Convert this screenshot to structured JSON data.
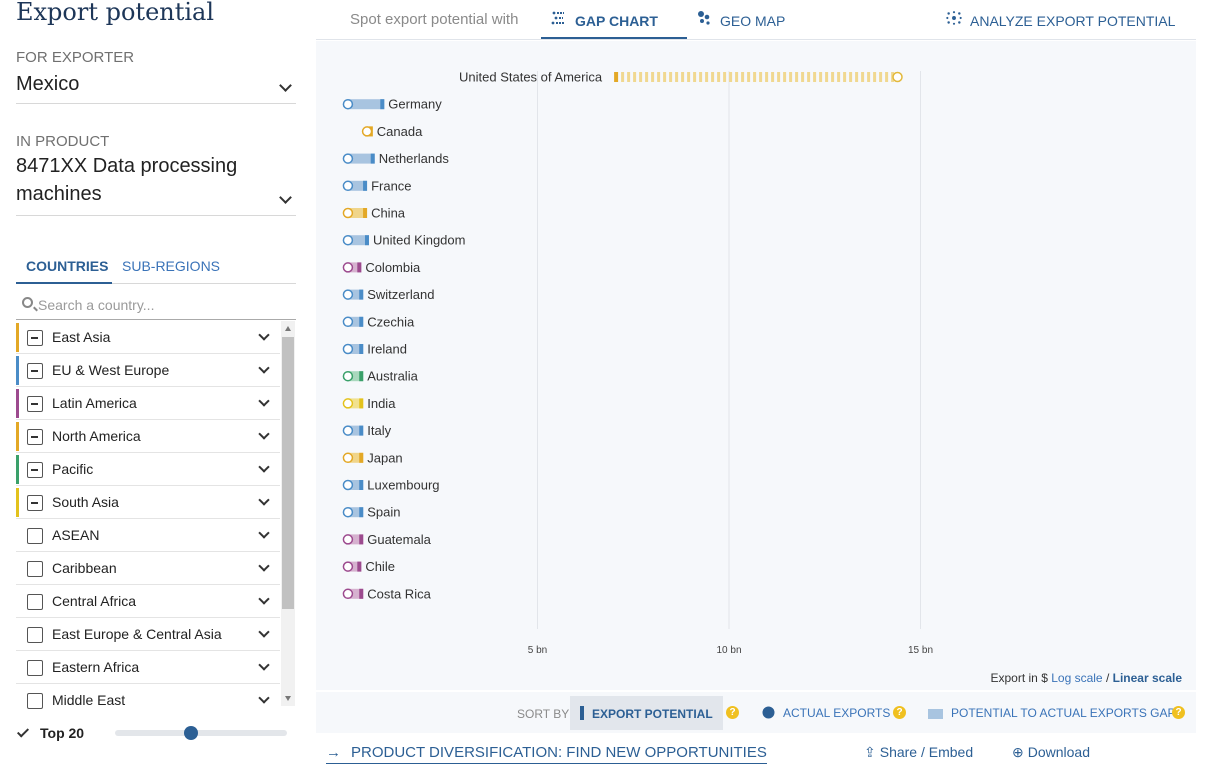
{
  "page_title": "Export potential",
  "exporter": {
    "label": "FOR EXPORTER",
    "value": "Mexico"
  },
  "product": {
    "label": "IN PRODUCT",
    "value_line1": "8471XX Data processing",
    "value_line2": "machines"
  },
  "tabs": {
    "countries": "COUNTRIES",
    "subregions": "SUB-REGIONS"
  },
  "search": {
    "placeholder": "Search a country..."
  },
  "regions": [
    {
      "name": "East Asia",
      "color": "#e3a826",
      "state": "partial"
    },
    {
      "name": "EU & West Europe",
      "color": "#4a8cc7",
      "state": "partial"
    },
    {
      "name": "Latin America",
      "color": "#9c4a8e",
      "state": "partial"
    },
    {
      "name": "North America",
      "color": "#e3a826",
      "state": "partial"
    },
    {
      "name": "Pacific",
      "color": "#3aa06a",
      "state": "partial"
    },
    {
      "name": "South Asia",
      "color": "#e3c21c",
      "state": "partial"
    },
    {
      "name": "ASEAN",
      "color": "",
      "state": "none"
    },
    {
      "name": "Caribbean",
      "color": "",
      "state": "none"
    },
    {
      "name": "Central Africa",
      "color": "",
      "state": "none"
    },
    {
      "name": "East Europe & Central Asia",
      "color": "",
      "state": "none"
    },
    {
      "name": "Eastern Africa",
      "color": "",
      "state": "none"
    },
    {
      "name": "Middle East",
      "color": "",
      "state": "none"
    }
  ],
  "top_n": {
    "label": "Top 20",
    "slider_fraction": 0.44
  },
  "topbar": {
    "spot_label": "Spot export potential with",
    "gap_chart": "GAP CHART",
    "geo_map": "GEO MAP",
    "analyze": "ANALYZE EXPORT POTENTIAL"
  },
  "chart_data": {
    "type": "gap-chart",
    "x_ticks": [
      "5 bn",
      "10 bn",
      "15 bn"
    ],
    "x_tick_values": [
      5,
      10,
      15
    ],
    "x_unit": "bn $",
    "rows": [
      {
        "country": "United States of America",
        "actual": 7.0,
        "potential": 14.4,
        "color": "#e3b93c"
      },
      {
        "country": "Germany",
        "actual": 0.05,
        "potential": 1.0,
        "color": "#4a8cc7"
      },
      {
        "country": "Canada",
        "actual": 0.55,
        "potential": 0.7,
        "color": "#e3a826"
      },
      {
        "country": "Netherlands",
        "actual": 0.05,
        "potential": 0.75,
        "color": "#4a8cc7"
      },
      {
        "country": "France",
        "actual": 0.05,
        "potential": 0.55,
        "color": "#4a8cc7"
      },
      {
        "country": "China",
        "actual": 0.05,
        "potential": 0.55,
        "color": "#e3a826"
      },
      {
        "country": "United Kingdom",
        "actual": 0.05,
        "potential": 0.6,
        "color": "#4a8cc7"
      },
      {
        "country": "Colombia",
        "actual": 0.05,
        "potential": 0.4,
        "color": "#9c4a8e"
      },
      {
        "country": "Switzerland",
        "actual": 0.05,
        "potential": 0.45,
        "color": "#4a8cc7"
      },
      {
        "country": "Czechia",
        "actual": 0.05,
        "potential": 0.45,
        "color": "#4a8cc7"
      },
      {
        "country": "Ireland",
        "actual": 0.05,
        "potential": 0.45,
        "color": "#4a8cc7"
      },
      {
        "country": "Australia",
        "actual": 0.05,
        "potential": 0.45,
        "color": "#3aa06a"
      },
      {
        "country": "India",
        "actual": 0.05,
        "potential": 0.45,
        "color": "#e3c21c"
      },
      {
        "country": "Italy",
        "actual": 0.05,
        "potential": 0.45,
        "color": "#4a8cc7"
      },
      {
        "country": "Japan",
        "actual": 0.05,
        "potential": 0.45,
        "color": "#e3a826"
      },
      {
        "country": "Luxembourg",
        "actual": 0.05,
        "potential": 0.45,
        "color": "#4a8cc7"
      },
      {
        "country": "Spain",
        "actual": 0.05,
        "potential": 0.45,
        "color": "#4a8cc7"
      },
      {
        "country": "Guatemala",
        "actual": 0.05,
        "potential": 0.45,
        "color": "#9c4a8e"
      },
      {
        "country": "Chile",
        "actual": 0.05,
        "potential": 0.4,
        "color": "#9c4a8e"
      },
      {
        "country": "Costa Rica",
        "actual": 0.05,
        "potential": 0.45,
        "color": "#9c4a8e"
      }
    ]
  },
  "scale": {
    "prefix": "Export in $",
    "log": "Log scale",
    "sep": "/",
    "linear": "Linear scale",
    "selected": "linear"
  },
  "sort": {
    "label": "SORT BY",
    "export_potential": "EXPORT POTENTIAL",
    "actual_exports": "ACTUAL EXPORTS",
    "gap": "POTENTIAL TO ACTUAL EXPORTS GAP",
    "help": "?"
  },
  "footer": {
    "diversification": "PRODUCT DIVERSIFICATION: FIND NEW OPPORTUNITIES",
    "share": "Share / Embed",
    "download": "Download"
  },
  "colors": {
    "accent": "#2c5f94",
    "link": "#3a73b8",
    "help": "#f0c020"
  }
}
